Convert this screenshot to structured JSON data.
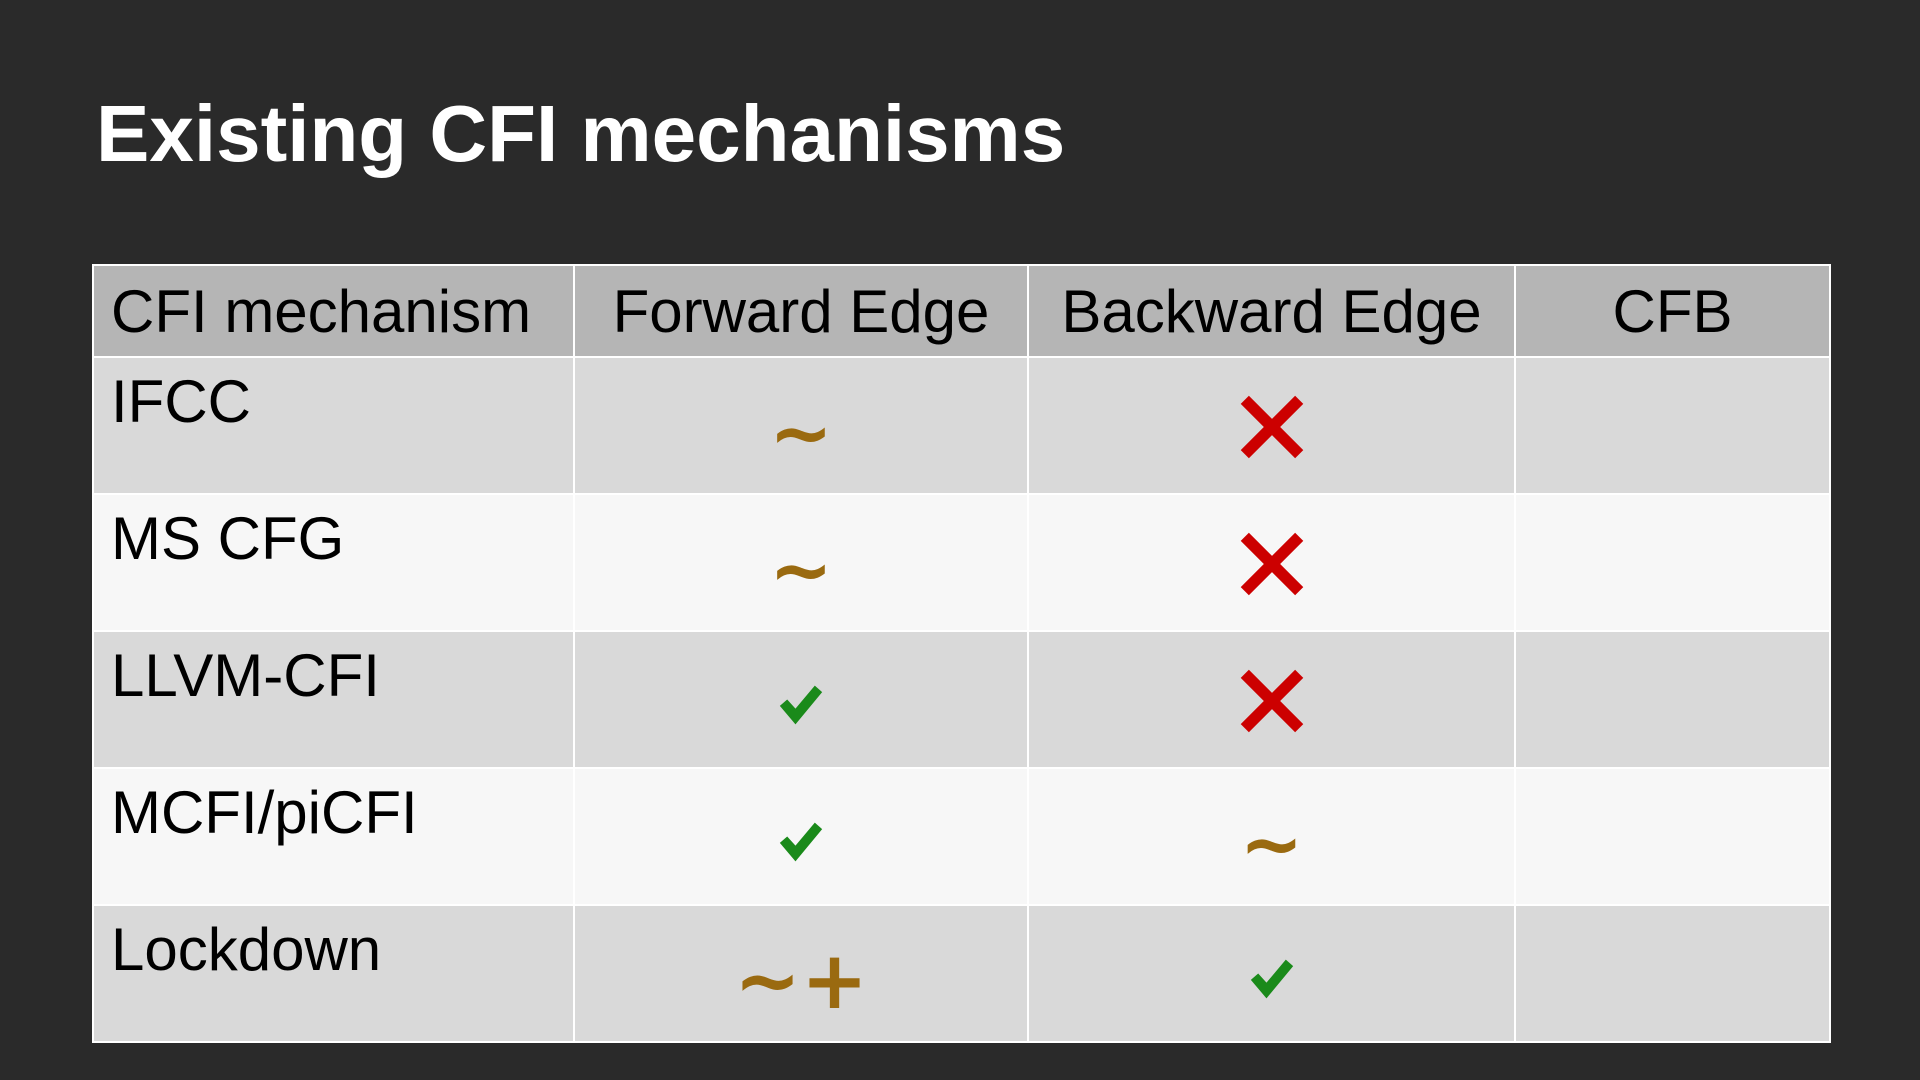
{
  "title": "Existing CFI mechanisms",
  "colors": {
    "background": "#2a2a2a",
    "header_row": "#b5b5b5",
    "row_odd": "#d9d9d9",
    "row_even": "#f7f7f7",
    "tilde": "#9a6a10",
    "check": "#1a8a1a",
    "cross": "#cc0000"
  },
  "table": {
    "headers": [
      "CFI mechanism",
      "Forward Edge",
      "Backward Edge",
      "CFB"
    ],
    "rows": [
      {
        "name": "IFCC",
        "forward": {
          "icon": "tilde-icon",
          "text": "~"
        },
        "backward": {
          "icon": "cross-icon",
          "text": ""
        },
        "cfb": ""
      },
      {
        "name": "MS CFG",
        "forward": {
          "icon": "tilde-icon",
          "text": "~"
        },
        "backward": {
          "icon": "cross-icon",
          "text": ""
        },
        "cfb": ""
      },
      {
        "name": "LLVM-CFI",
        "forward": {
          "icon": "check-icon",
          "text": ""
        },
        "backward": {
          "icon": "cross-icon",
          "text": ""
        },
        "cfb": ""
      },
      {
        "name": "MCFI/piCFI",
        "forward": {
          "icon": "check-icon",
          "text": ""
        },
        "backward": {
          "icon": "tilde-icon",
          "text": "~"
        },
        "cfb": ""
      },
      {
        "name": "Lockdown",
        "forward": {
          "icon": "tilde-plus-icon",
          "text": "~+"
        },
        "backward": {
          "icon": "check-icon",
          "text": ""
        },
        "cfb": ""
      }
    ]
  }
}
